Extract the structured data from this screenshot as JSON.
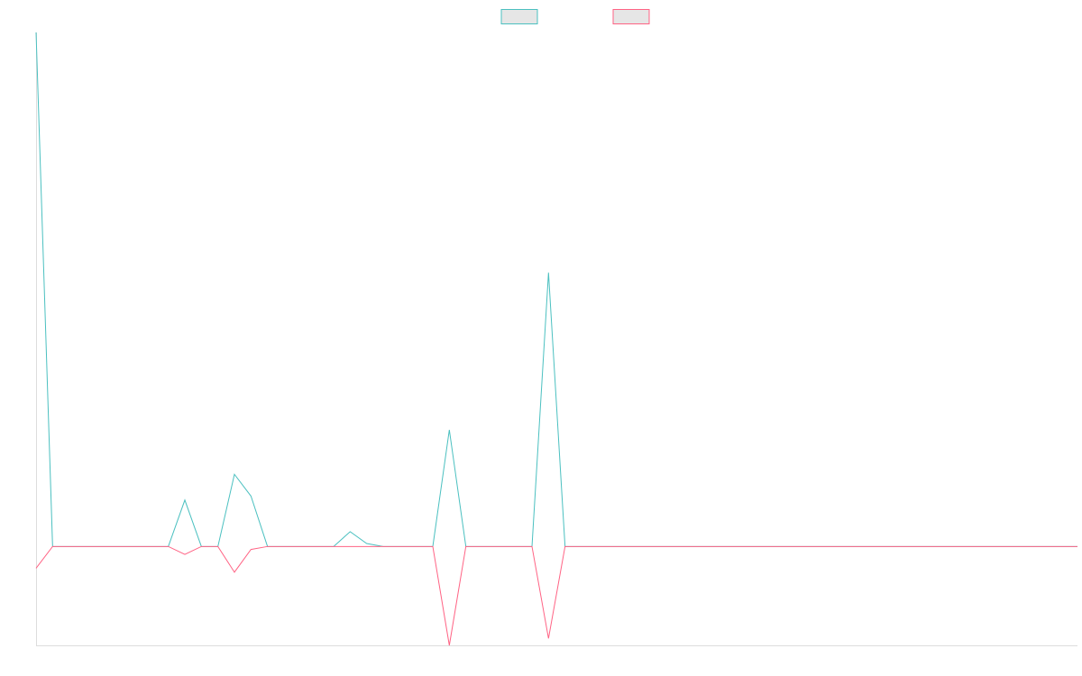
{
  "chart_data": {
    "type": "line",
    "title": "",
    "xlabel": "",
    "ylabel": "",
    "grid": false,
    "legend_position": "top-center",
    "ylim": [
      -100,
      520
    ],
    "x_count": 64,
    "series": [
      {
        "color": "#4bc0c0",
        "fill": "#e6e6e6",
        "points": [
          {
            "i": 0,
            "v": 520
          },
          {
            "i": 9,
            "v": 47
          },
          {
            "i": 12,
            "v": 73
          },
          {
            "i": 13,
            "v": 51
          },
          {
            "i": 19,
            "v": 15
          },
          {
            "i": 20,
            "v": 3
          },
          {
            "i": 25,
            "v": 118
          },
          {
            "i": 31,
            "v": 277
          }
        ]
      },
      {
        "color": "#ff6384",
        "fill": "#e6e6e6",
        "points": [
          {
            "i": 0,
            "v": -22
          },
          {
            "i": 9,
            "v": -8
          },
          {
            "i": 12,
            "v": -26
          },
          {
            "i": 13,
            "v": -3
          },
          {
            "i": 25,
            "v": -100
          },
          {
            "i": 31,
            "v": -93
          }
        ]
      }
    ]
  }
}
